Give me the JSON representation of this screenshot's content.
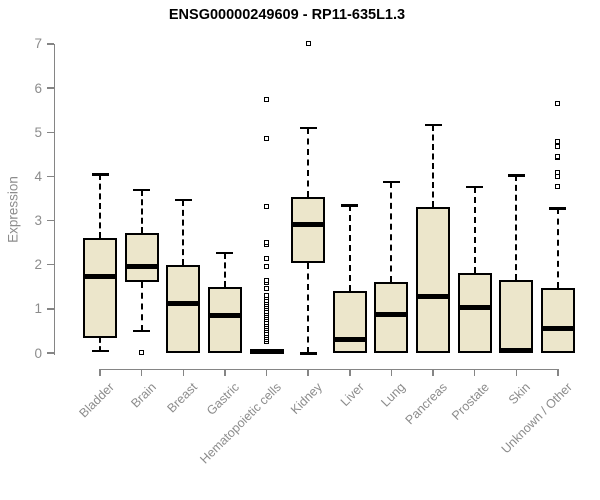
{
  "header": {
    "title": "ENSG00000249609 - RP11-635L1.3"
  },
  "chart_data": {
    "type": "boxplot",
    "title": "ENSG00000249609 - RP11-635L1.3",
    "xlabel": "",
    "ylabel": "Expression",
    "ylim": [
      0,
      7
    ],
    "yticks": [
      0,
      1,
      2,
      3,
      4,
      5,
      6,
      7
    ],
    "grid": false,
    "legend": "none",
    "categories": [
      "Bladder",
      "Brain",
      "Breast",
      "Gastric",
      "Hematopoietic cells",
      "Kidney",
      "Liver",
      "Lung",
      "Pancreas",
      "Prostate",
      "Skin",
      "Unknown / Other"
    ],
    "boxes": [
      {
        "category": "Bladder",
        "whisker_low": 0.05,
        "q1": 0.35,
        "median": 1.73,
        "q3": 2.6,
        "whisker_high": 4.05,
        "outliers": []
      },
      {
        "category": "Brain",
        "whisker_low": 0.5,
        "q1": 1.6,
        "median": 1.95,
        "q3": 2.72,
        "whisker_high": 3.7,
        "outliers": [
          0.02
        ]
      },
      {
        "category": "Breast",
        "whisker_low": 0,
        "q1": 0,
        "median": 1.13,
        "q3": 2.0,
        "whisker_high": 3.47,
        "outliers": []
      },
      {
        "category": "Gastric",
        "whisker_low": 0,
        "q1": 0,
        "median": 0.85,
        "q3": 1.5,
        "whisker_high": 2.27,
        "outliers": []
      },
      {
        "category": "Hematopoietic cells",
        "whisker_low": 0,
        "q1": 0,
        "median": 0.03,
        "q3": 0.07,
        "whisker_high": 0.1,
        "outliers": [
          0.25,
          0.3,
          0.35,
          0.4,
          0.45,
          0.5,
          0.55,
          0.6,
          0.65,
          0.7,
          0.75,
          0.8,
          0.85,
          0.9,
          0.95,
          1.0,
          1.05,
          1.1,
          1.15,
          1.2,
          1.25,
          1.31,
          1.45,
          1.6,
          1.65,
          1.95,
          2.15,
          2.45,
          2.5,
          3.33,
          4.85,
          5.75
        ]
      },
      {
        "category": "Kidney",
        "whisker_low": 0,
        "q1": 2.05,
        "median": 2.9,
        "q3": 3.53,
        "whisker_high": 5.1,
        "outliers": [
          7.0
        ]
      },
      {
        "category": "Liver",
        "whisker_low": 0,
        "q1": 0,
        "median": 0.3,
        "q3": 1.4,
        "whisker_high": 3.35,
        "outliers": []
      },
      {
        "category": "Lung",
        "whisker_low": 0,
        "q1": 0,
        "median": 0.87,
        "q3": 1.6,
        "whisker_high": 3.88,
        "outliers": []
      },
      {
        "category": "Pancreas",
        "whisker_low": 0,
        "q1": 0,
        "median": 1.28,
        "q3": 3.31,
        "whisker_high": 5.17,
        "outliers": []
      },
      {
        "category": "Prostate",
        "whisker_low": 0,
        "q1": 0,
        "median": 1.03,
        "q3": 1.82,
        "whisker_high": 3.77,
        "outliers": []
      },
      {
        "category": "Skin",
        "whisker_low": 0,
        "q1": 0,
        "median": 0.05,
        "q3": 1.66,
        "whisker_high": 4.03,
        "outliers": []
      },
      {
        "category": "Unknown / Other",
        "whisker_low": 0,
        "q1": 0,
        "median": 0.55,
        "q3": 1.48,
        "whisker_high": 3.28,
        "outliers": [
          3.77,
          4.0,
          4.08,
          4.42,
          4.45,
          4.67,
          4.8,
          5.65
        ]
      }
    ],
    "colors": {
      "box_fill": "#ECE6CB",
      "box_border": "#000000",
      "median": "#000000",
      "axis": "#858585",
      "tick_label": "#8c8c8c",
      "title": "#000000"
    }
  }
}
